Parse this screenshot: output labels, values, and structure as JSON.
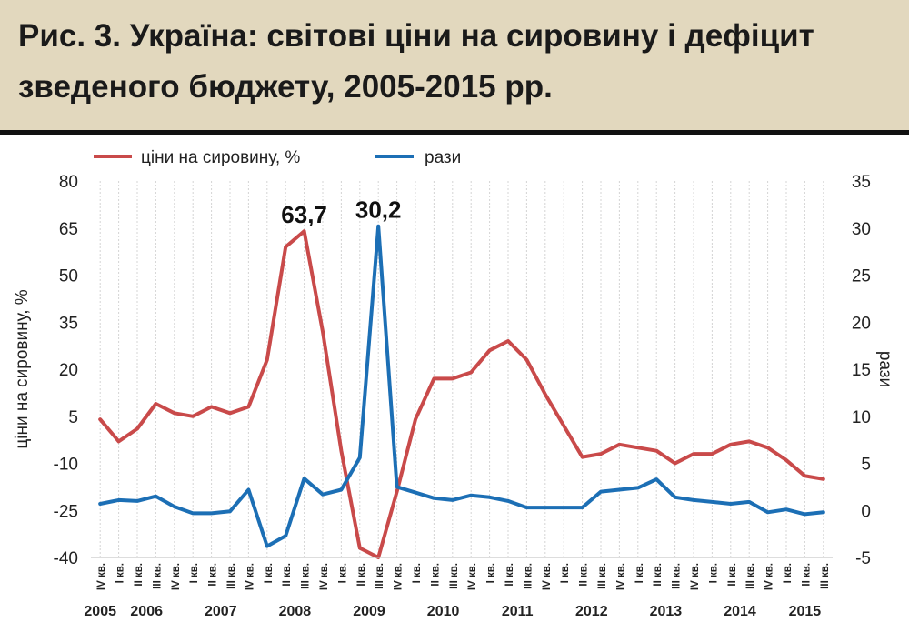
{
  "title": "Рис. 3. Україна: світові ціни на сировину і дефіцит зведеного бюджету, 2005-2015 рр.",
  "chart_data": {
    "type": "line",
    "categories": [
      "IV кв.",
      "I кв.",
      "II кв.",
      "III кв.",
      "IV кв.",
      "I кв.",
      "II кв.",
      "III кв.",
      "IV кв.",
      "I кв.",
      "II кв.",
      "III кв.",
      "IV кв.",
      "I кв.",
      "II кв.",
      "III кв.",
      "IV кв.",
      "I кв.",
      "II кв.",
      "III кв.",
      "IV кв.",
      "I кв.",
      "II кв.",
      "III кв.",
      "IV кв.",
      "I кв.",
      "II кв.",
      "III кв.",
      "IV кв.",
      "I кв.",
      "II кв.",
      "III кв.",
      "IV кв.",
      "I кв.",
      "II кв.",
      "III кв.",
      "IV кв.",
      "I кв.",
      "II кв.",
      "III кв."
    ],
    "years": [
      {
        "label": "2005",
        "index": 0
      },
      {
        "label": "2006",
        "index": 2.5
      },
      {
        "label": "2007",
        "index": 6.5
      },
      {
        "label": "2008",
        "index": 10.5
      },
      {
        "label": "2009",
        "index": 14.5
      },
      {
        "label": "2010",
        "index": 18.5
      },
      {
        "label": "2011",
        "index": 22.5
      },
      {
        "label": "2012",
        "index": 26.5
      },
      {
        "label": "2013",
        "index": 30.5
      },
      {
        "label": "2014",
        "index": 34.5
      },
      {
        "label": "2015",
        "index": 38
      }
    ],
    "series": [
      {
        "name": "ціни на сировину, %",
        "axis": "left",
        "color": "#c94a4a",
        "values": [
          4,
          -3,
          1,
          9,
          6,
          5,
          8,
          6,
          8,
          23,
          59,
          64,
          32,
          -6,
          -37,
          -40,
          -19,
          4,
          17,
          17,
          19,
          26,
          29,
          23,
          12,
          2,
          -8,
          -7,
          -4,
          -5,
          -6,
          -10,
          -7,
          -7,
          -4,
          -3,
          -5,
          -9,
          -14,
          -15
        ]
      },
      {
        "name": "рази",
        "axis": "right",
        "color": "#1c6fb5",
        "values": [
          0.7,
          1.1,
          1.0,
          1.5,
          0.4,
          -0.3,
          -0.3,
          -0.1,
          2.2,
          -3.8,
          -2.7,
          3.4,
          1.7,
          2.2,
          5.6,
          30.2,
          2.5,
          1.9,
          1.3,
          1.1,
          1.6,
          1.4,
          1.0,
          0.3,
          0.3,
          0.3,
          0.3,
          2.0,
          2.2,
          2.4,
          3.3,
          1.4,
          1.1,
          0.9,
          0.7,
          0.9,
          -0.2,
          0.1,
          -0.4,
          -0.2
        ]
      }
    ],
    "ylabel": "ціни на сировину, %",
    "y2label": "рази",
    "ylim": [
      -40,
      80
    ],
    "y2lim": [
      -5,
      35
    ],
    "yticks": [
      -40,
      -25,
      -10,
      5,
      20,
      35,
      50,
      65,
      80
    ],
    "y2ticks": [
      -5,
      0,
      5,
      10,
      15,
      20,
      25,
      30,
      35
    ],
    "annotations": [
      {
        "text": "63,7",
        "series": 0,
        "index": 11
      },
      {
        "text": "30,2",
        "series": 1,
        "index": 15
      }
    ],
    "legend": "top",
    "grid": "vertical"
  }
}
